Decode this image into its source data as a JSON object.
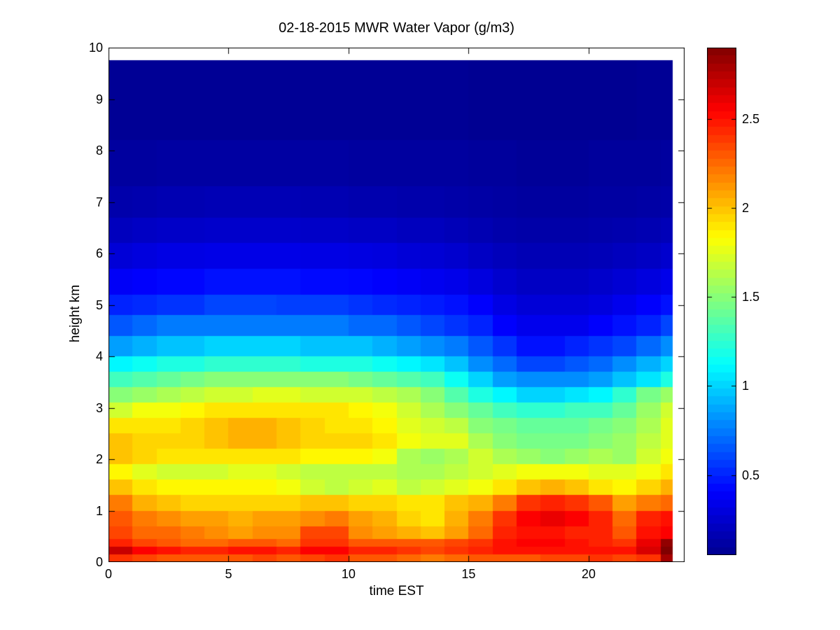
{
  "figure": {
    "background": "#ffffff",
    "frame_color": "#000000"
  },
  "chart_data": {
    "type": "heatmap",
    "title": "02-18-2015 MWR Water Vapor (g/m3)",
    "xlabel": "time EST",
    "ylabel": "height km",
    "xlim": [
      0,
      24
    ],
    "ylim": [
      0,
      10
    ],
    "grid": false,
    "xticks": {
      "values": [
        0,
        5,
        10,
        15,
        20
      ],
      "labels": [
        "0",
        "5",
        "10",
        "15",
        "20"
      ]
    },
    "yticks": {
      "values": [
        0,
        1,
        2,
        3,
        4,
        5,
        6,
        7,
        8,
        9,
        10
      ],
      "labels": [
        "0",
        "1",
        "2",
        "3",
        "4",
        "5",
        "6",
        "7",
        "8",
        "9",
        "10"
      ]
    },
    "clim": [
      0.05,
      2.9
    ],
    "colormap": {
      "name": "jet",
      "stops": [
        [
          0.0,
          "#00008f"
        ],
        [
          0.125,
          "#0000ff"
        ],
        [
          0.375,
          "#00ffff"
        ],
        [
          0.625,
          "#ffff00"
        ],
        [
          0.875,
          "#ff0000"
        ],
        [
          1.0,
          "#800000"
        ]
      ]
    },
    "colorbar": {
      "position": "right",
      "tick_values": [
        0.5,
        1,
        1.5,
        2,
        2.5
      ],
      "tick_labels": [
        "0.5",
        "1",
        "1.5",
        "2",
        "2.5"
      ]
    },
    "x_edges": [
      0,
      1,
      2,
      3,
      4,
      5,
      6,
      7,
      8,
      9,
      10,
      11,
      12,
      13,
      14,
      15,
      16,
      17,
      18,
      19,
      20,
      21,
      22,
      23,
      23.5
    ],
    "height_edges": [
      0,
      0.15,
      0.3,
      0.45,
      0.7,
      1.0,
      1.3,
      1.6,
      1.9,
      2.2,
      2.5,
      2.8,
      3.1,
      3.4,
      3.7,
      4.0,
      4.4,
      4.8,
      5.2,
      5.7,
      6.2,
      6.7,
      7.3,
      8.2,
      9.75
    ],
    "values_order": "rows bottom-to-top matching height_edges; columns hour 0..23 matching x_edges",
    "values": [
      [
        2.4,
        2.35,
        2.3,
        2.3,
        2.3,
        2.3,
        2.35,
        2.3,
        2.35,
        2.4,
        2.3,
        2.3,
        2.25,
        2.2,
        2.25,
        2.3,
        2.3,
        2.3,
        2.35,
        2.35,
        2.4,
        2.35,
        2.4,
        2.8
      ],
      [
        2.7,
        2.55,
        2.5,
        2.45,
        2.45,
        2.5,
        2.5,
        2.45,
        2.55,
        2.55,
        2.45,
        2.45,
        2.4,
        2.35,
        2.4,
        2.45,
        2.5,
        2.5,
        2.5,
        2.5,
        2.5,
        2.5,
        2.65,
        2.9
      ],
      [
        2.45,
        2.35,
        2.3,
        2.25,
        2.25,
        2.3,
        2.3,
        2.25,
        2.4,
        2.4,
        2.3,
        2.3,
        2.3,
        2.3,
        2.35,
        2.4,
        2.5,
        2.55,
        2.55,
        2.5,
        2.45,
        2.4,
        2.6,
        2.85
      ],
      [
        2.35,
        2.25,
        2.25,
        2.2,
        2.15,
        2.1,
        2.15,
        2.15,
        2.35,
        2.35,
        2.15,
        2.1,
        2.05,
        2.0,
        2.1,
        2.25,
        2.45,
        2.5,
        2.5,
        2.45,
        2.45,
        2.3,
        2.5,
        2.55
      ],
      [
        2.3,
        2.2,
        2.15,
        2.1,
        2.1,
        2.05,
        2.1,
        2.1,
        2.15,
        2.2,
        2.1,
        2.05,
        1.95,
        1.9,
        2.05,
        2.2,
        2.4,
        2.55,
        2.6,
        2.55,
        2.45,
        2.25,
        2.45,
        2.5
      ],
      [
        2.2,
        2.05,
        2.0,
        1.95,
        1.95,
        1.95,
        1.95,
        1.95,
        2.0,
        2.0,
        1.95,
        1.95,
        1.9,
        1.9,
        2.0,
        2.05,
        2.2,
        2.4,
        2.45,
        2.4,
        2.3,
        2.1,
        2.2,
        2.25
      ],
      [
        2.0,
        1.9,
        1.85,
        1.85,
        1.85,
        1.85,
        1.85,
        1.8,
        1.7,
        1.65,
        1.7,
        1.75,
        1.65,
        1.7,
        1.75,
        1.8,
        1.9,
        2.0,
        2.05,
        2.0,
        1.9,
        1.85,
        1.95,
        2.05
      ],
      [
        1.85,
        1.75,
        1.7,
        1.7,
        1.7,
        1.75,
        1.75,
        1.7,
        1.65,
        1.65,
        1.65,
        1.65,
        1.6,
        1.6,
        1.65,
        1.7,
        1.75,
        1.8,
        1.8,
        1.8,
        1.75,
        1.75,
        1.8,
        1.9
      ],
      [
        2.0,
        1.95,
        1.9,
        1.9,
        1.9,
        1.9,
        1.9,
        1.9,
        1.85,
        1.85,
        1.85,
        1.8,
        1.6,
        1.55,
        1.6,
        1.7,
        1.6,
        1.55,
        1.5,
        1.55,
        1.6,
        1.55,
        1.7,
        1.8
      ],
      [
        2.0,
        1.95,
        1.95,
        1.95,
        2.0,
        2.05,
        2.05,
        2.0,
        1.95,
        1.95,
        1.95,
        1.9,
        1.8,
        1.75,
        1.75,
        1.6,
        1.5,
        1.45,
        1.45,
        1.45,
        1.5,
        1.55,
        1.65,
        1.75
      ],
      [
        1.9,
        1.9,
        1.9,
        1.95,
        2.0,
        2.05,
        2.05,
        2.0,
        1.95,
        1.9,
        1.9,
        1.85,
        1.75,
        1.7,
        1.65,
        1.5,
        1.45,
        1.4,
        1.4,
        1.4,
        1.45,
        1.5,
        1.6,
        1.75
      ],
      [
        1.7,
        1.8,
        1.8,
        1.85,
        1.9,
        1.9,
        1.9,
        1.9,
        1.9,
        1.9,
        1.85,
        1.8,
        1.7,
        1.6,
        1.5,
        1.4,
        1.3,
        1.25,
        1.25,
        1.3,
        1.3,
        1.4,
        1.55,
        1.7
      ],
      [
        1.5,
        1.55,
        1.6,
        1.65,
        1.7,
        1.7,
        1.75,
        1.75,
        1.7,
        1.7,
        1.7,
        1.65,
        1.6,
        1.5,
        1.35,
        1.2,
        1.1,
        1.0,
        1.0,
        1.05,
        1.1,
        1.25,
        1.45,
        1.55
      ],
      [
        1.3,
        1.35,
        1.4,
        1.45,
        1.5,
        1.5,
        1.5,
        1.5,
        1.5,
        1.5,
        1.45,
        1.4,
        1.35,
        1.3,
        1.15,
        1.0,
        0.85,
        0.8,
        0.8,
        0.8,
        0.85,
        0.95,
        1.05,
        1.2
      ],
      [
        1.1,
        1.15,
        1.2,
        1.2,
        1.25,
        1.25,
        1.25,
        1.25,
        1.2,
        1.2,
        1.2,
        1.15,
        1.1,
        1.05,
        0.95,
        0.8,
        0.7,
        0.6,
        0.6,
        0.65,
        0.7,
        0.8,
        0.9,
        1.0
      ],
      [
        0.85,
        0.9,
        0.95,
        0.95,
        1.0,
        1.0,
        1.0,
        1.0,
        0.95,
        0.95,
        0.95,
        0.9,
        0.85,
        0.8,
        0.75,
        0.65,
        0.55,
        0.45,
        0.45,
        0.5,
        0.55,
        0.6,
        0.7,
        0.8
      ],
      [
        0.65,
        0.7,
        0.75,
        0.75,
        0.75,
        0.75,
        0.75,
        0.75,
        0.75,
        0.75,
        0.7,
        0.7,
        0.65,
        0.6,
        0.55,
        0.5,
        0.4,
        0.35,
        0.35,
        0.35,
        0.4,
        0.45,
        0.5,
        0.6
      ],
      [
        0.5,
        0.52,
        0.55,
        0.55,
        0.6,
        0.6,
        0.6,
        0.58,
        0.58,
        0.58,
        0.55,
        0.52,
        0.5,
        0.48,
        0.45,
        0.4,
        0.32,
        0.28,
        0.28,
        0.28,
        0.3,
        0.35,
        0.4,
        0.45
      ],
      [
        0.38,
        0.4,
        0.42,
        0.42,
        0.45,
        0.45,
        0.45,
        0.45,
        0.43,
        0.43,
        0.42,
        0.4,
        0.38,
        0.36,
        0.34,
        0.3,
        0.25,
        0.22,
        0.22,
        0.22,
        0.24,
        0.27,
        0.3,
        0.34
      ],
      [
        0.28,
        0.3,
        0.32,
        0.32,
        0.33,
        0.33,
        0.33,
        0.33,
        0.32,
        0.32,
        0.31,
        0.3,
        0.28,
        0.27,
        0.25,
        0.22,
        0.19,
        0.17,
        0.17,
        0.17,
        0.18,
        0.2,
        0.22,
        0.25
      ],
      [
        0.2,
        0.22,
        0.23,
        0.23,
        0.24,
        0.24,
        0.24,
        0.24,
        0.23,
        0.23,
        0.22,
        0.22,
        0.2,
        0.2,
        0.18,
        0.16,
        0.14,
        0.13,
        0.13,
        0.13,
        0.14,
        0.15,
        0.16,
        0.18
      ],
      [
        0.14,
        0.15,
        0.16,
        0.16,
        0.17,
        0.17,
        0.17,
        0.17,
        0.16,
        0.16,
        0.15,
        0.15,
        0.14,
        0.14,
        0.13,
        0.12,
        0.11,
        0.1,
        0.1,
        0.1,
        0.11,
        0.11,
        0.12,
        0.13
      ],
      [
        0.1,
        0.1,
        0.11,
        0.11,
        0.11,
        0.11,
        0.11,
        0.11,
        0.11,
        0.11,
        0.1,
        0.1,
        0.1,
        0.1,
        0.1,
        0.09,
        0.09,
        0.08,
        0.08,
        0.08,
        0.09,
        0.09,
        0.09,
        0.1
      ],
      [
        0.07,
        0.07,
        0.07,
        0.07,
        0.07,
        0.07,
        0.07,
        0.07,
        0.07,
        0.07,
        0.07,
        0.07,
        0.07,
        0.07,
        0.07,
        0.06,
        0.06,
        0.06,
        0.06,
        0.06,
        0.06,
        0.06,
        0.07,
        0.07
      ]
    ]
  }
}
